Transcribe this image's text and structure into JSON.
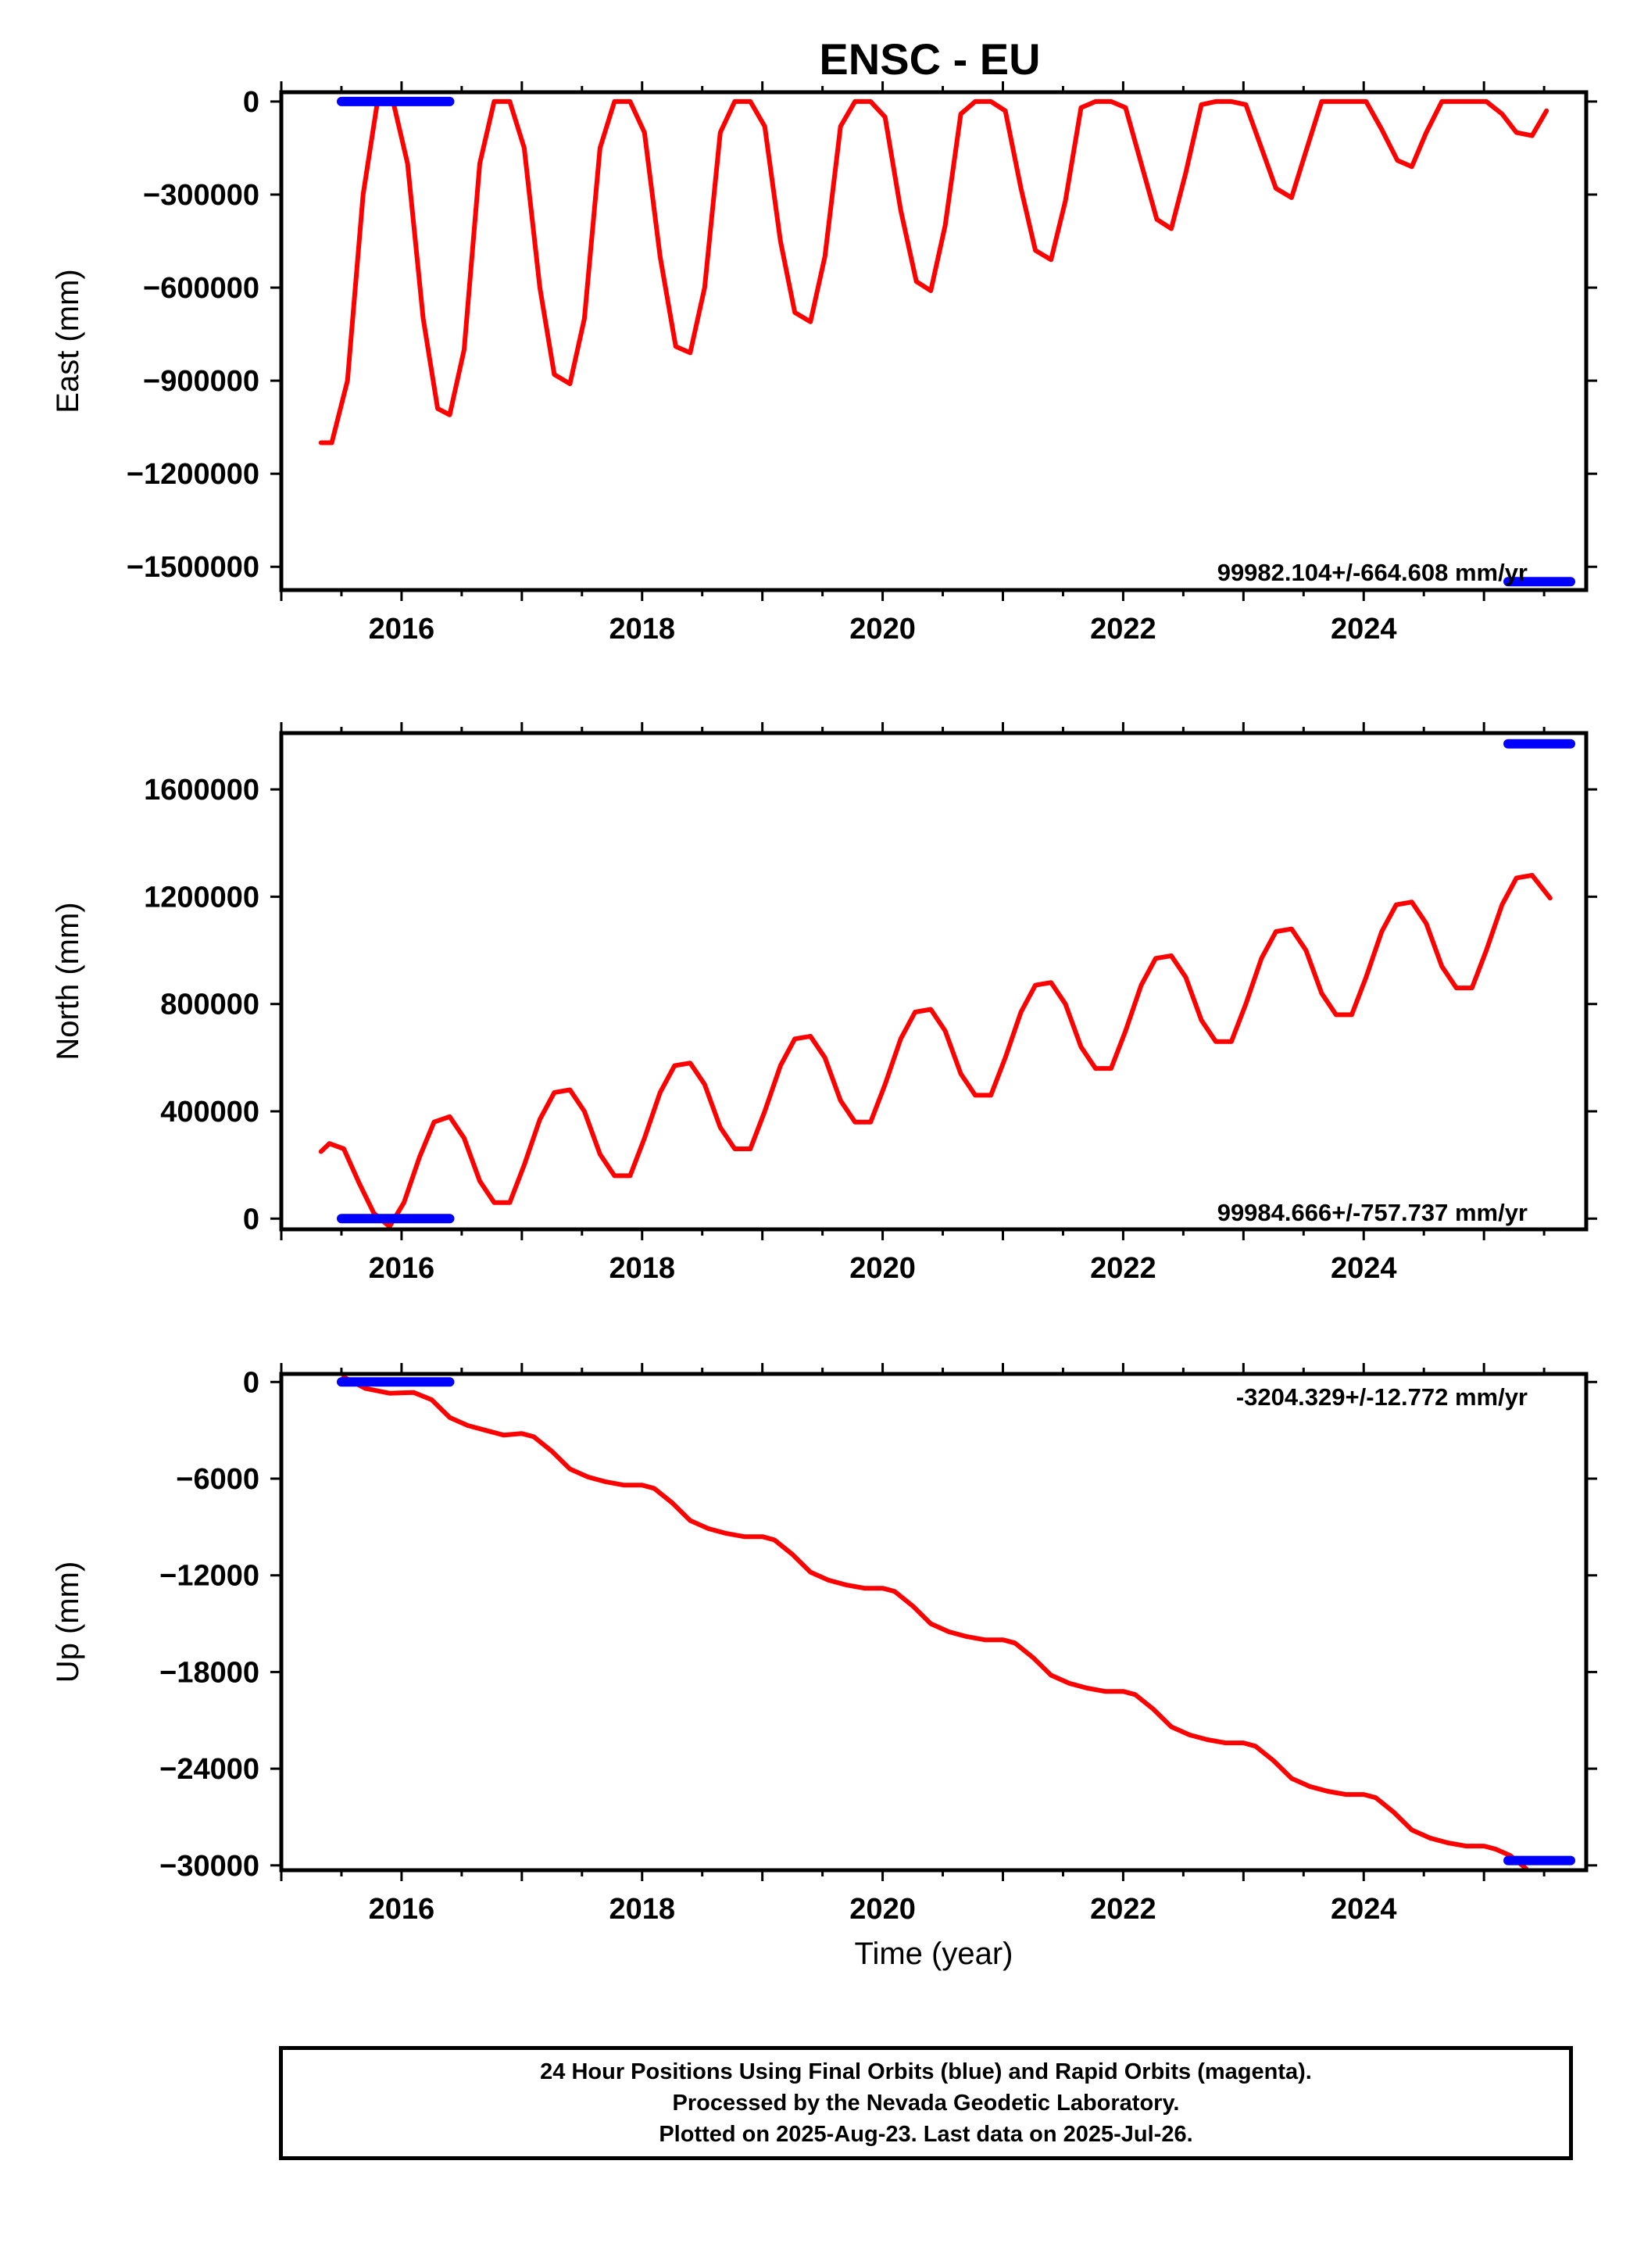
{
  "title": "ENSC - EU",
  "colors": {
    "model": "#ff0000",
    "final_orbits": "#0000ff"
  },
  "chart_data": [
    {
      "type": "line",
      "ylabel": "East (mm)",
      "xlabel": "",
      "xlim": [
        2015.0,
        2025.85
      ],
      "ylim": [
        -1575000,
        30000
      ],
      "xticks": [
        2016,
        2018,
        2020,
        2022,
        2024
      ],
      "xtick_labels": [
        "2016",
        "2018",
        "2020",
        "2022",
        "2024"
      ],
      "yticks": [
        0,
        -300000,
        -600000,
        -900000,
        -1200000,
        -1500000
      ],
      "ytick_labels": [
        "0",
        "−300000",
        "−600000",
        "−900000",
        "−1200000",
        "−1500000"
      ],
      "rate_label": "99982.104+/-664.608 mm/yr",
      "series": [
        {
          "style": "model-line",
          "x": [
            2015.33,
            2015.42,
            2015.55,
            2015.68,
            2015.8,
            2015.93,
            2016.05,
            2016.18,
            2016.3,
            2016.4,
            2016.52,
            2016.65,
            2016.77,
            2016.9,
            2017.02,
            2017.15,
            2017.27,
            2017.4,
            2017.52,
            2017.65,
            2017.77,
            2017.9,
            2018.02,
            2018.15,
            2018.28,
            2018.4,
            2018.52,
            2018.65,
            2018.77,
            2018.9,
            2019.02,
            2019.15,
            2019.27,
            2019.4,
            2019.52,
            2019.65,
            2019.77,
            2019.9,
            2020.02,
            2020.15,
            2020.28,
            2020.4,
            2020.52,
            2020.65,
            2020.77,
            2020.9,
            2021.02,
            2021.15,
            2021.27,
            2021.4,
            2021.52,
            2021.65,
            2021.77,
            2021.9,
            2022.02,
            2022.15,
            2022.28,
            2022.4,
            2022.52,
            2022.65,
            2022.77,
            2022.9,
            2023.02,
            2023.15,
            2023.27,
            2023.4,
            2023.52,
            2023.65,
            2023.77,
            2023.9,
            2024.02,
            2024.15,
            2024.28,
            2024.4,
            2024.52,
            2024.65,
            2024.77,
            2024.9,
            2025.02,
            2025.15,
            2025.27,
            2025.4,
            2025.52
          ],
          "y": [
            -1100000,
            -1100000,
            -900000,
            -300000,
            0,
            0,
            -200000,
            -700000,
            -990000,
            -1010000,
            -800000,
            -200000,
            0,
            0,
            -150000,
            -600000,
            -880000,
            -910000,
            -700000,
            -150000,
            0,
            0,
            -100000,
            -500000,
            -790000,
            -810000,
            -600000,
            -100000,
            0,
            0,
            -80000,
            -450000,
            -680000,
            -710000,
            -500000,
            -80000,
            0,
            0,
            -50000,
            -350000,
            -580000,
            -610000,
            -400000,
            -40000,
            0,
            0,
            -30000,
            -280000,
            -480000,
            -510000,
            -320000,
            -20000,
            0,
            0,
            -20000,
            -200000,
            -380000,
            -410000,
            -230000,
            -10000,
            0,
            0,
            -10000,
            -150000,
            -280000,
            -310000,
            -160000,
            0,
            0,
            0,
            0,
            -90000,
            -190000,
            -210000,
            -100000,
            0,
            0,
            0,
            0,
            -40000,
            -100000,
            -110000,
            -30000
          ]
        },
        {
          "style": "final-orbits",
          "x": [
            2015.5,
            2016.4
          ],
          "y": [
            0,
            0
          ]
        },
        {
          "style": "final-orbits",
          "x": [
            2025.2,
            2025.72
          ],
          "y": [
            -1548000,
            -1548000
          ]
        }
      ]
    },
    {
      "type": "line",
      "ylabel": "North (mm)",
      "xlabel": "",
      "xlim": [
        2015.0,
        2025.85
      ],
      "ylim": [
        -40000,
        1810000
      ],
      "xticks": [
        2016,
        2018,
        2020,
        2022,
        2024
      ],
      "xtick_labels": [
        "2016",
        "2018",
        "2020",
        "2022",
        "2024"
      ],
      "yticks": [
        0,
        400000,
        800000,
        1200000,
        1600000
      ],
      "ytick_labels": [
        "0",
        "400000",
        "800000",
        "1200000",
        "1600000"
      ],
      "rate_label": "99984.666+/-757.737 mm/yr",
      "series": [
        {
          "style": "model-line",
          "x": [
            2015.33,
            2015.4,
            2015.52,
            2015.65,
            2015.77,
            2015.9,
            2016.02,
            2016.15,
            2016.27,
            2016.4,
            2016.52,
            2016.65,
            2016.77,
            2016.9,
            2017.02,
            2017.15,
            2017.27,
            2017.4,
            2017.52,
            2017.65,
            2017.77,
            2017.9,
            2018.02,
            2018.15,
            2018.27,
            2018.4,
            2018.52,
            2018.65,
            2018.77,
            2018.9,
            2019.02,
            2019.15,
            2019.27,
            2019.4,
            2019.52,
            2019.65,
            2019.77,
            2019.9,
            2020.02,
            2020.15,
            2020.27,
            2020.4,
            2020.52,
            2020.65,
            2020.77,
            2020.9,
            2021.02,
            2021.15,
            2021.27,
            2021.4,
            2021.52,
            2021.65,
            2021.77,
            2021.9,
            2022.02,
            2022.15,
            2022.27,
            2022.4,
            2022.52,
            2022.65,
            2022.77,
            2022.9,
            2023.02,
            2023.15,
            2023.27,
            2023.4,
            2023.52,
            2023.65,
            2023.77,
            2023.9,
            2024.02,
            2024.15,
            2024.27,
            2024.4,
            2024.52,
            2024.65,
            2024.77,
            2024.9,
            2025.02,
            2025.15,
            2025.27,
            2025.4,
            2025.55
          ],
          "y": [
            250000,
            280000,
            260000,
            130000,
            20000,
            -30000,
            60000,
            230000,
            360000,
            380000,
            300000,
            140000,
            60000,
            60000,
            200000,
            370000,
            470000,
            480000,
            400000,
            240000,
            160000,
            160000,
            300000,
            470000,
            570000,
            580000,
            500000,
            340000,
            260000,
            260000,
            400000,
            570000,
            670000,
            680000,
            600000,
            440000,
            360000,
            360000,
            500000,
            670000,
            770000,
            780000,
            700000,
            540000,
            460000,
            460000,
            600000,
            770000,
            870000,
            880000,
            800000,
            640000,
            560000,
            560000,
            700000,
            870000,
            970000,
            980000,
            900000,
            740000,
            660000,
            660000,
            800000,
            970000,
            1070000,
            1080000,
            1000000,
            840000,
            760000,
            760000,
            900000,
            1070000,
            1170000,
            1180000,
            1100000,
            940000,
            860000,
            860000,
            1000000,
            1170000,
            1270000,
            1280000,
            1195000
          ]
        },
        {
          "style": "final-orbits",
          "x": [
            2015.5,
            2016.4
          ],
          "y": [
            0,
            0
          ]
        },
        {
          "style": "final-orbits",
          "x": [
            2025.2,
            2025.72
          ],
          "y": [
            1770000,
            1770000
          ]
        }
      ]
    },
    {
      "type": "line",
      "ylabel": "Up (mm)",
      "xlabel": "Time (year)",
      "xlim": [
        2015.0,
        2025.85
      ],
      "ylim": [
        -30300,
        500
      ],
      "xticks": [
        2016,
        2018,
        2020,
        2022,
        2024
      ],
      "xtick_labels": [
        "2016",
        "2018",
        "2020",
        "2022",
        "2024"
      ],
      "yticks": [
        0,
        -6000,
        -12000,
        -18000,
        -24000,
        -30000
      ],
      "ytick_labels": [
        "0",
        "−6000",
        "−12000",
        "−18000",
        "−24000",
        "−30000"
      ],
      "rate_label": "-3204.329+/-12.772 mm/yr",
      "series": [
        {
          "style": "model-line",
          "x": [
            2015.52,
            2015.7,
            2015.9,
            2016.1,
            2016.25,
            2016.4,
            2016.55,
            2016.7,
            2016.85,
            2017.0,
            2017.1,
            2017.25,
            2017.4,
            2017.55,
            2017.7,
            2017.85,
            2018.0,
            2018.1,
            2018.25,
            2018.4,
            2018.55,
            2018.7,
            2018.85,
            2019.0,
            2019.1,
            2019.25,
            2019.4,
            2019.55,
            2019.7,
            2019.85,
            2020.0,
            2020.1,
            2020.25,
            2020.4,
            2020.55,
            2020.7,
            2020.85,
            2021.0,
            2021.1,
            2021.25,
            2021.4,
            2021.55,
            2021.7,
            2021.85,
            2022.0,
            2022.1,
            2022.25,
            2022.4,
            2022.55,
            2022.7,
            2022.85,
            2023.0,
            2023.1,
            2023.25,
            2023.4,
            2023.55,
            2023.7,
            2023.85,
            2024.0,
            2024.1,
            2024.25,
            2024.4,
            2024.55,
            2024.7,
            2024.85,
            2025.0,
            2025.1,
            2025.22,
            2025.35
          ],
          "y": [
            300,
            -400,
            -700,
            -650,
            -1100,
            -2200,
            -2700,
            -3000,
            -3300,
            -3200,
            -3400,
            -4300,
            -5400,
            -5900,
            -6200,
            -6400,
            -6400,
            -6600,
            -7500,
            -8600,
            -9100,
            -9400,
            -9600,
            -9600,
            -9800,
            -10700,
            -11800,
            -12300,
            -12600,
            -12800,
            -12800,
            -13000,
            -13900,
            -15000,
            -15500,
            -15800,
            -16000,
            -16000,
            -16200,
            -17100,
            -18200,
            -18700,
            -19000,
            -19200,
            -19200,
            -19400,
            -20300,
            -21400,
            -21900,
            -22200,
            -22400,
            -22400,
            -22600,
            -23500,
            -24600,
            -25100,
            -25400,
            -25600,
            -25600,
            -25800,
            -26700,
            -27800,
            -28300,
            -28600,
            -28800,
            -28800,
            -29000,
            -29400,
            -30200
          ]
        },
        {
          "style": "final-orbits",
          "x": [
            2015.5,
            2016.4
          ],
          "y": [
            0,
            0
          ]
        },
        {
          "style": "final-orbits",
          "x": [
            2025.2,
            2025.72
          ],
          "y": [
            -29700,
            -29700
          ]
        }
      ]
    }
  ],
  "footer": {
    "line1": "24 Hour Positions Using Final Orbits (blue) and Rapid Orbits (magenta).",
    "line2": "Processed by the Nevada Geodetic Laboratory.",
    "line3": "Plotted on 2025-Aug-23. Last data on 2025-Jul-26."
  }
}
